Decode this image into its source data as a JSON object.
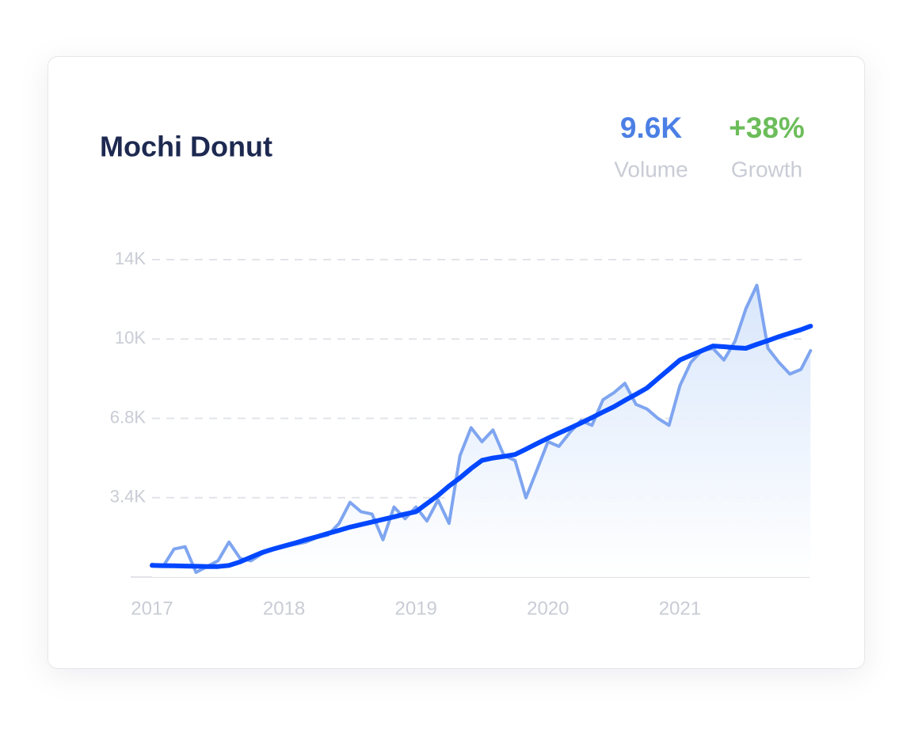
{
  "chart_data": {
    "type": "line",
    "title": "Mochi Donut",
    "stats": [
      {
        "value": "9.6K",
        "label": "Volume",
        "color": "#4b7fe5"
      },
      {
        "value": "+38%",
        "label": "Growth",
        "color": "#6cbd5a"
      }
    ],
    "x": [
      2017,
      2017.083,
      2017.167,
      2017.25,
      2017.333,
      2017.417,
      2017.5,
      2017.583,
      2017.667,
      2017.75,
      2017.833,
      2017.917,
      2018,
      2018.083,
      2018.167,
      2018.25,
      2018.333,
      2018.417,
      2018.5,
      2018.583,
      2018.667,
      2018.75,
      2018.833,
      2018.917,
      2019,
      2019.083,
      2019.167,
      2019.25,
      2019.333,
      2019.417,
      2019.5,
      2019.583,
      2019.667,
      2019.75,
      2019.833,
      2019.917,
      2020,
      2020.083,
      2020.167,
      2020.25,
      2020.333,
      2020.417,
      2020.5,
      2020.583,
      2020.667,
      2020.75,
      2020.833,
      2020.917,
      2021,
      2021.083,
      2021.167,
      2021.25,
      2021.333,
      2021.417,
      2021.5,
      2021.583,
      2021.667,
      2021.75,
      2021.833,
      2021.917,
      2021.99
    ],
    "series": [
      {
        "color": "#7fa5f0",
        "area": true,
        "values": [
          550,
          450,
          1200,
          1300,
          200,
          450,
          700,
          1500,
          800,
          700,
          1000,
          1200,
          1300,
          1400,
          1500,
          1700,
          1800,
          2300,
          3200,
          2800,
          2700,
          1600,
          3000,
          2500,
          3000,
          2400,
          3300,
          2300,
          5200,
          6400,
          5800,
          6300,
          5200,
          5000,
          3400,
          4600,
          5800,
          5600,
          6200,
          6700,
          6500,
          7600,
          7900,
          8300,
          7400,
          7200,
          6800,
          6500,
          8200,
          9200,
          9700,
          9800,
          9300,
          10100,
          11500,
          12500,
          9800,
          9200,
          8700,
          8900,
          9700
        ]
      },
      {
        "color": "#0047ff",
        "values": [
          500,
          490,
          480,
          470,
          460,
          450,
          450,
          500,
          650,
          850,
          1050,
          1200,
          1330,
          1460,
          1600,
          1730,
          1870,
          2000,
          2140,
          2250,
          2360,
          2470,
          2580,
          2700,
          2800,
          3150,
          3500,
          3900,
          4250,
          4650,
          5000,
          5100,
          5170,
          5250,
          5480,
          5720,
          5950,
          6170,
          6380,
          6600,
          6830,
          7070,
          7300,
          7570,
          7830,
          8100,
          8500,
          8900,
          9300,
          9500,
          9700,
          9900,
          9870,
          9830,
          9800,
          9970,
          10130,
          10300,
          10450,
          10600,
          10750
        ]
      }
    ],
    "xlim": [
      2017,
      2022
    ],
    "xticks": [
      2017,
      2018,
      2019,
      2020,
      2021
    ],
    "ylim": [
      0,
      13600
    ],
    "yticks": [
      {
        "value": 3400,
        "label": "3.4K"
      },
      {
        "value": 6800,
        "label": "6.8K"
      },
      {
        "value": 10200,
        "label": "10K"
      },
      {
        "value": 13600,
        "label": "14K"
      }
    ],
    "grid": true
  }
}
